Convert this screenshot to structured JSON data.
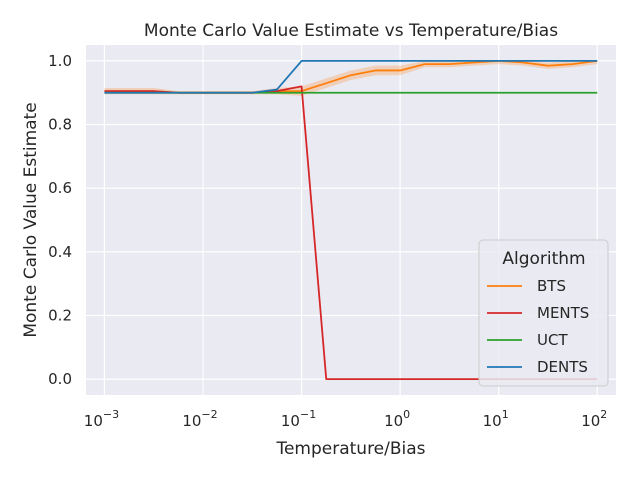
{
  "chart_data": {
    "type": "line",
    "title": "Monte Carlo Value Estimate vs Temperature/Bias",
    "xlabel": "Temperature/Bias",
    "ylabel": "Monte Carlo Value Estimate",
    "xscale": "log",
    "xlim": [
      0.00065,
      155
    ],
    "ylim": [
      -0.05,
      1.05
    ],
    "xticks": [
      {
        "value": 0.001,
        "base": "10",
        "exp": "−3"
      },
      {
        "value": 0.01,
        "base": "10",
        "exp": "−2"
      },
      {
        "value": 0.1,
        "base": "10",
        "exp": "−1"
      },
      {
        "value": 1,
        "base": "10",
        "exp": "0"
      },
      {
        "value": 10,
        "base": "10",
        "exp": "1"
      },
      {
        "value": 100,
        "base": "10",
        "exp": "2"
      }
    ],
    "yticks": [
      {
        "value": 0.0,
        "label": "0.0"
      },
      {
        "value": 0.2,
        "label": "0.2"
      },
      {
        "value": 0.4,
        "label": "0.4"
      },
      {
        "value": 0.6,
        "label": "0.6"
      },
      {
        "value": 0.8,
        "label": "0.8"
      },
      {
        "value": 1.0,
        "label": "1.0"
      }
    ],
    "grid": true,
    "background": "#eaeaf2",
    "legend": {
      "title": "Algorithm",
      "placement": "lower-right"
    },
    "series": [
      {
        "name": "BTS",
        "color": "#ff7f0e",
        "band": true,
        "x": [
          0.001,
          0.00178,
          0.00316,
          0.00562,
          0.01,
          0.0178,
          0.0316,
          0.0562,
          0.1,
          0.178,
          0.316,
          0.562,
          1,
          1.78,
          3.16,
          5.62,
          10,
          17.8,
          31.6,
          56.2,
          100
        ],
        "y": [
          0.905,
          0.905,
          0.905,
          0.9,
          0.9,
          0.9,
          0.9,
          0.905,
          0.905,
          0.93,
          0.955,
          0.97,
          0.97,
          0.99,
          0.99,
          0.995,
          1.0,
          0.995,
          0.985,
          0.99,
          1.0
        ],
        "y_low": [
          0.895,
          0.895,
          0.895,
          0.895,
          0.895,
          0.895,
          0.895,
          0.895,
          0.89,
          0.915,
          0.94,
          0.955,
          0.955,
          0.98,
          0.98,
          0.985,
          0.99,
          0.985,
          0.975,
          0.98,
          0.99
        ],
        "y_high": [
          0.915,
          0.915,
          0.915,
          0.905,
          0.905,
          0.905,
          0.905,
          0.915,
          0.92,
          0.945,
          0.97,
          0.985,
          0.985,
          1.0,
          1.0,
          1.0,
          1.0,
          1.0,
          0.995,
          1.0,
          1.0
        ]
      },
      {
        "name": "MENTS",
        "color": "#d62728",
        "band": false,
        "x": [
          0.001,
          0.00178,
          0.00316,
          0.00562,
          0.01,
          0.0178,
          0.0316,
          0.0562,
          0.1,
          0.178,
          0.316,
          0.562,
          1,
          1.78,
          3.16,
          5.62,
          10,
          17.8,
          31.6,
          56.2,
          100
        ],
        "y": [
          0.905,
          0.905,
          0.905,
          0.9,
          0.9,
          0.9,
          0.9,
          0.905,
          0.92,
          0.0,
          0.0,
          0.0,
          0.0,
          0.0,
          0.0,
          0.0,
          0.0,
          0.0,
          0.0,
          0.0,
          0.0
        ]
      },
      {
        "name": "UCT",
        "color": "#2ca02c",
        "band": false,
        "x": [
          0.001,
          100
        ],
        "y": [
          0.9,
          0.9
        ]
      },
      {
        "name": "DENTS",
        "color": "#1f77b4",
        "band": false,
        "x": [
          0.001,
          0.00178,
          0.00316,
          0.00562,
          0.01,
          0.0178,
          0.0316,
          0.0562,
          0.1,
          0.178,
          0.316,
          0.562,
          1,
          1.78,
          3.16,
          5.62,
          10,
          17.8,
          31.6,
          56.2,
          100
        ],
        "y": [
          0.9,
          0.9,
          0.9,
          0.9,
          0.9,
          0.9,
          0.9,
          0.91,
          1.0,
          1.0,
          1.0,
          1.0,
          1.0,
          1.0,
          1.0,
          1.0,
          1.0,
          1.0,
          1.0,
          1.0,
          1.0
        ]
      }
    ]
  }
}
